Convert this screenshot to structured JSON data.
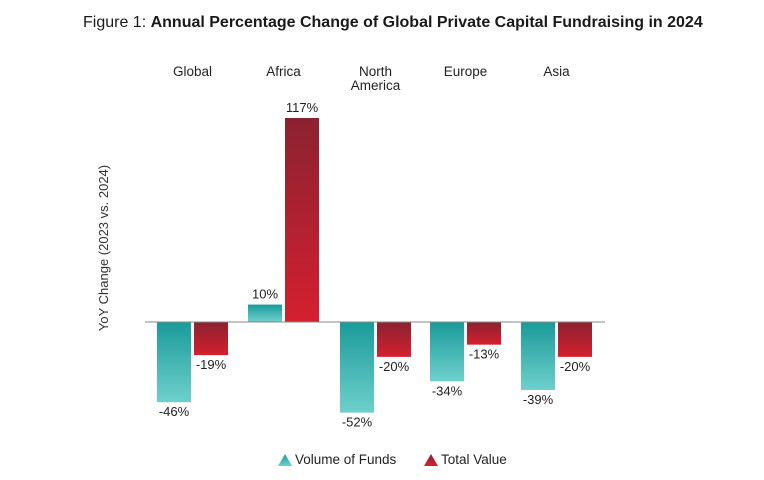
{
  "title": {
    "prefix": "Figure 1: ",
    "main": "Annual Percentage Change of Global Private Capital Fundraising in 2024"
  },
  "chart_data": {
    "type": "bar",
    "categories": [
      "Global",
      "Africa",
      "North America",
      "Europe",
      "Asia"
    ],
    "category_lines": [
      [
        "Global"
      ],
      [
        "Africa"
      ],
      [
        "North",
        "America"
      ],
      [
        "Europe"
      ],
      [
        "Asia"
      ]
    ],
    "ylabel": "YoY Change (2023 vs. 2024)",
    "ylim": [
      -60,
      125
    ],
    "grid": false,
    "legend_position": "bottom",
    "series": [
      {
        "name": "Volume of Funds",
        "values": [
          -46,
          10,
          -52,
          -34,
          -39
        ],
        "labels": [
          "-46%",
          "10%",
          "-52%",
          "-34%",
          "-39%"
        ],
        "color_top": "#1a9a9a",
        "color_bottom": "#6fd0cc"
      },
      {
        "name": "Total Value",
        "values": [
          -19,
          117,
          -20,
          -13,
          -20
        ],
        "labels": [
          "-19%",
          "117%",
          "-20%",
          "-13%",
          "-20%"
        ],
        "color_top": "#8b2230",
        "color_bottom": "#d4202f"
      }
    ]
  }
}
